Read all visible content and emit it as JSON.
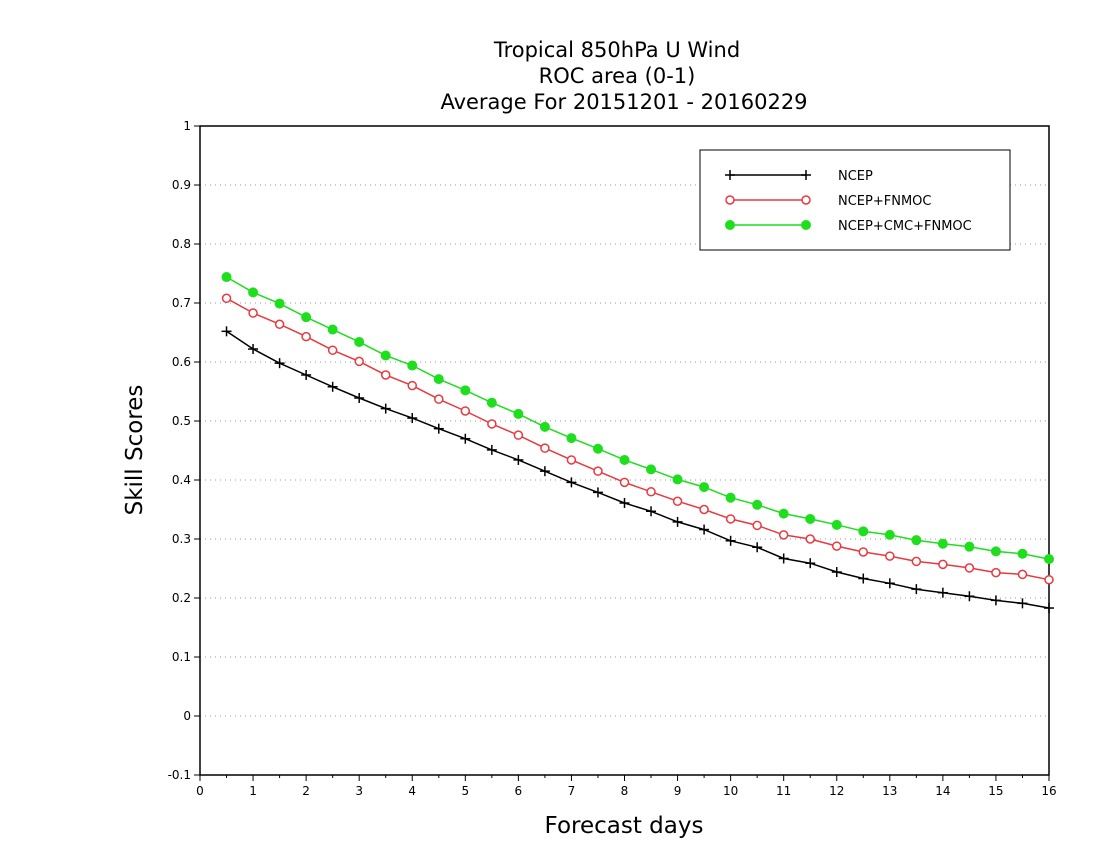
{
  "chart_data": {
    "type": "line",
    "title": [
      "Tropical 850hPa U Wind",
      "ROC area (0-1)",
      "Average For 20151201 - 20160229"
    ],
    "xlabel": "Forecast days",
    "ylabel": "Skill Scores",
    "xlim": [
      0,
      16
    ],
    "ylim": [
      -0.1,
      1
    ],
    "xticks": [
      "0",
      "1",
      "2",
      "3",
      "4",
      "5",
      "6",
      "7",
      "8",
      "9",
      "10",
      "11",
      "12",
      "13",
      "14",
      "15",
      "16"
    ],
    "yticks": [
      "-0.1",
      "0",
      "0.1",
      "0.2",
      "0.3",
      "0.4",
      "0.5",
      "0.6",
      "0.7",
      "0.8",
      "0.9",
      "1"
    ],
    "grid": "horizontal dotted",
    "legend_position": "top-right",
    "x": [
      0.5,
      1,
      1.5,
      2,
      2.5,
      3,
      3.5,
      4,
      4.5,
      5,
      5.5,
      6,
      6.5,
      7,
      7.5,
      8,
      8.5,
      9,
      9.5,
      10,
      10.5,
      11,
      11.5,
      12,
      12.5,
      13,
      13.5,
      14,
      14.5,
      15,
      15.5,
      16
    ],
    "series": [
      {
        "name": "NCEP",
        "color": "#000000",
        "marker": "plus",
        "values": [
          0.652,
          0.622,
          0.598,
          0.578,
          0.558,
          0.539,
          0.521,
          0.505,
          0.487,
          0.47,
          0.451,
          0.434,
          0.415,
          0.396,
          0.379,
          0.361,
          0.347,
          0.329,
          0.316,
          0.297,
          0.286,
          0.267,
          0.259,
          0.244,
          0.233,
          0.225,
          0.215,
          0.209,
          0.203,
          0.196,
          0.191,
          0.183
        ]
      },
      {
        "name": "NCEP+FNMOC",
        "color": "#e8393f",
        "marker": "open-circle",
        "values": [
          0.708,
          0.683,
          0.664,
          0.643,
          0.62,
          0.601,
          0.578,
          0.56,
          0.537,
          0.517,
          0.495,
          0.476,
          0.454,
          0.434,
          0.415,
          0.396,
          0.38,
          0.364,
          0.35,
          0.334,
          0.323,
          0.307,
          0.3,
          0.288,
          0.278,
          0.271,
          0.262,
          0.257,
          0.251,
          0.243,
          0.24,
          0.231
        ]
      },
      {
        "name": "NCEP+CMC+FNMOC",
        "color": "#1ede1e",
        "marker": "filled-circle",
        "values": [
          0.744,
          0.718,
          0.699,
          0.676,
          0.655,
          0.634,
          0.611,
          0.594,
          0.571,
          0.552,
          0.531,
          0.512,
          0.49,
          0.471,
          0.453,
          0.434,
          0.418,
          0.401,
          0.388,
          0.37,
          0.358,
          0.343,
          0.334,
          0.324,
          0.313,
          0.307,
          0.298,
          0.292,
          0.287,
          0.279,
          0.275,
          0.266
        ]
      }
    ]
  }
}
